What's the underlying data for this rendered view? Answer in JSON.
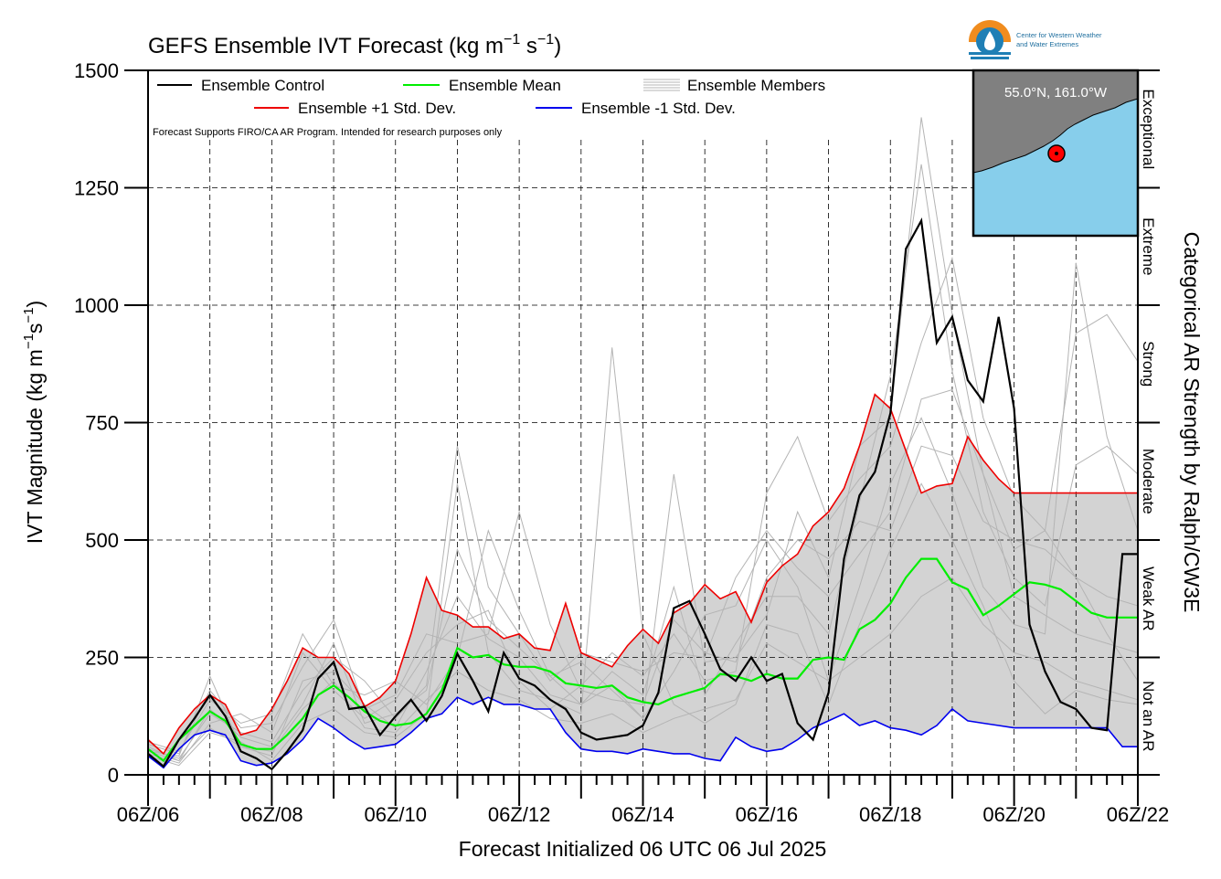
{
  "chart_data": {
    "type": "line",
    "title": "GEFS Ensemble IVT Forecast (kg m",
    "title_sup1": "−1",
    "title_mid": " s",
    "title_sup2": "−1",
    "title_end": ")",
    "xlabel": "Forecast Initialized 06 UTC 06 Jul 2025",
    "ylabel_main": "IVT Magnitude (kg m",
    "ylabel_sup1": "−1",
    "ylabel_mid": "s",
    "ylabel_sup2": "−1",
    "ylabel_end": ")",
    "right_label": "Categorical AR Strength by Ralph/CW3E",
    "x_tick_labels": [
      "06Z/06",
      "06Z/08",
      "06Z/10",
      "06Z/12",
      "06Z/14",
      "06Z/16",
      "06Z/18",
      "06Z/20",
      "06Z/22"
    ],
    "x_range_days": [
      0,
      16
    ],
    "ylim": [
      0,
      1500
    ],
    "y_ticks": [
      0,
      250,
      500,
      750,
      1000,
      1250,
      1500
    ],
    "grid": true,
    "categories": [
      "Not an AR",
      "Weak AR",
      "Moderate",
      "Strong",
      "Extreme",
      "Exceptional"
    ],
    "category_bounds": [
      0,
      250,
      500,
      750,
      1000,
      1250,
      1500
    ],
    "legend": {
      "control": "Ensemble Control",
      "mean": "Ensemble Mean",
      "members": "Ensemble Members",
      "plus_sd": "Ensemble +1 Std. Dev.",
      "minus_sd": "Ensemble -1 Std. Dev."
    },
    "disclaimer": "Forecast Supports FIRO/CA AR Program. Intended for research purposes only",
    "inset_location": "55.0°N, 161.0°W",
    "logo_text": [
      "Center for Western Weather",
      "and Water Extremes"
    ],
    "colors": {
      "control": "#000000",
      "mean": "#00ee00",
      "plus_sd": "#ee0000",
      "minus_sd": "#0000ee",
      "members": "#b4b4b4",
      "band": "#d3d3d3",
      "ocean": "#87ceeb",
      "land": "#808080",
      "marker": "#ff0000"
    },
    "series": [
      {
        "name": "Ensemble Control",
        "x": [
          0,
          0.25,
          0.5,
          0.75,
          1,
          1.25,
          1.5,
          1.75,
          2,
          2.25,
          2.5,
          2.75,
          3,
          3.25,
          3.5,
          3.75,
          4,
          4.25,
          4.5,
          4.75,
          5,
          5.25,
          5.5,
          5.75,
          6,
          6.25,
          6.5,
          6.75,
          7,
          7.25,
          7.5,
          7.75,
          8,
          8.25,
          8.5,
          8.75,
          9,
          9.25,
          9.5,
          9.75,
          10,
          10.25,
          10.5,
          10.75,
          11,
          11.25,
          11.5,
          11.75,
          12,
          12.25,
          12.5,
          12.75,
          13,
          13.25,
          13.5,
          13.75,
          14,
          14.25,
          14.5,
          14.75,
          15,
          15.25,
          15.5,
          15.75,
          16
        ],
        "values": [
          45,
          18,
          75,
          120,
          170,
          125,
          50,
          35,
          12,
          50,
          95,
          205,
          240,
          140,
          145,
          85,
          125,
          160,
          115,
          168,
          258,
          200,
          135,
          260,
          205,
          190,
          160,
          140,
          90,
          75,
          80,
          85,
          105,
          175,
          355,
          370,
          300,
          225,
          200,
          250,
          200,
          215,
          110,
          75,
          175,
          460,
          595,
          645,
          770,
          1120,
          1180,
          920,
          975,
          840,
          795,
          975,
          780,
          320,
          220,
          155,
          140,
          100,
          95,
          470,
          470
        ]
      },
      {
        "name": "Ensemble Mean",
        "x": [
          0,
          0.25,
          0.5,
          0.75,
          1,
          1.25,
          1.5,
          1.75,
          2,
          2.25,
          2.5,
          2.75,
          3,
          3.25,
          3.5,
          3.75,
          4,
          4.25,
          4.5,
          4.75,
          5,
          5.25,
          5.5,
          5.75,
          6,
          6.25,
          6.5,
          6.75,
          7,
          7.25,
          7.5,
          7.75,
          8,
          8.25,
          8.5,
          8.75,
          9,
          9.25,
          9.5,
          9.75,
          10,
          10.25,
          10.5,
          10.75,
          11,
          11.25,
          11.5,
          11.75,
          12,
          12.25,
          12.5,
          12.75,
          13,
          13.25,
          13.5,
          13.75,
          14,
          14.25,
          14.5,
          14.75,
          15,
          15.25,
          15.5,
          15.75,
          16
        ],
        "values": [
          55,
          30,
          75,
          105,
          135,
          115,
          65,
          55,
          55,
          85,
          120,
          170,
          190,
          165,
          135,
          115,
          105,
          110,
          130,
          180,
          270,
          250,
          255,
          235,
          230,
          230,
          220,
          195,
          190,
          185,
          190,
          165,
          155,
          150,
          165,
          175,
          185,
          215,
          210,
          200,
          215,
          205,
          205,
          245,
          250,
          245,
          310,
          330,
          365,
          420,
          460,
          460,
          410,
          395,
          340,
          360,
          385,
          410,
          405,
          395,
          370,
          345,
          335,
          335,
          335
        ]
      },
      {
        "name": "Ensemble +1 Std. Dev.",
        "x": [
          0,
          0.25,
          0.5,
          0.75,
          1,
          1.25,
          1.5,
          1.75,
          2,
          2.25,
          2.5,
          2.75,
          3,
          3.25,
          3.5,
          3.75,
          4,
          4.25,
          4.5,
          4.75,
          5,
          5.25,
          5.5,
          5.75,
          6,
          6.25,
          6.5,
          6.75,
          7,
          7.25,
          7.5,
          7.75,
          8,
          8.25,
          8.5,
          8.75,
          9,
          9.25,
          9.5,
          9.75,
          10,
          10.25,
          10.5,
          10.75,
          11,
          11.25,
          11.5,
          11.75,
          12,
          12.25,
          12.5,
          12.75,
          13,
          13.25,
          13.5,
          13.75,
          14,
          14.25,
          14.5,
          14.75,
          15,
          15.25,
          15.5,
          15.75,
          16
        ],
        "values": [
          75,
          45,
          100,
          140,
          170,
          150,
          85,
          95,
          140,
          200,
          270,
          250,
          250,
          215,
          145,
          165,
          200,
          300,
          420,
          350,
          340,
          315,
          315,
          290,
          300,
          270,
          265,
          365,
          260,
          245,
          230,
          275,
          310,
          280,
          345,
          365,
          405,
          375,
          390,
          325,
          410,
          445,
          470,
          530,
          560,
          610,
          700,
          810,
          780,
          690,
          600,
          615,
          620,
          720,
          670,
          630,
          600,
          600,
          600,
          600,
          600,
          600,
          600,
          600,
          600
        ]
      },
      {
        "name": "Ensemble -1 Std. Dev.",
        "x": [
          0,
          0.25,
          0.5,
          0.75,
          1,
          1.25,
          1.5,
          1.75,
          2,
          2.25,
          2.5,
          2.75,
          3,
          3.25,
          3.5,
          3.75,
          4,
          4.25,
          4.5,
          4.75,
          5,
          5.25,
          5.5,
          5.75,
          6,
          6.25,
          6.5,
          6.75,
          7,
          7.25,
          7.5,
          7.75,
          8,
          8.25,
          8.5,
          8.75,
          9,
          9.25,
          9.5,
          9.75,
          10,
          10.25,
          10.5,
          10.75,
          11,
          11.25,
          11.5,
          11.75,
          12,
          12.25,
          12.5,
          12.75,
          13,
          13.25,
          13.5,
          13.75,
          14,
          14.25,
          14.5,
          14.75,
          15,
          15.25,
          15.5,
          15.75,
          16
        ],
        "values": [
          40,
          15,
          55,
          85,
          95,
          85,
          30,
          20,
          25,
          45,
          75,
          120,
          100,
          75,
          55,
          60,
          65,
          90,
          120,
          130,
          165,
          150,
          165,
          150,
          150,
          140,
          140,
          90,
          55,
          50,
          50,
          45,
          55,
          50,
          45,
          45,
          35,
          30,
          80,
          60,
          50,
          55,
          75,
          100,
          115,
          130,
          105,
          115,
          100,
          95,
          85,
          105,
          140,
          115,
          110,
          105,
          100,
          100,
          100,
          100,
          100,
          100,
          100,
          60,
          60
        ]
      }
    ],
    "member_series": [
      {
        "x": [
          0,
          0.5,
          1,
          1.5,
          2,
          2.5,
          3,
          3.5,
          4,
          4.5,
          5,
          5.5,
          6,
          6.5,
          7,
          7.5,
          8,
          8.5,
          9,
          9.5,
          10,
          10.5,
          11,
          11.5,
          12,
          12.5,
          13,
          13.5,
          14,
          14.5,
          15,
          15.5,
          16
        ],
        "values": [
          60,
          30,
          140,
          80,
          60,
          150,
          280,
          110,
          130,
          180,
          480,
          330,
          270,
          210,
          150,
          190,
          120,
          640,
          240,
          250,
          340,
          560,
          420,
          700,
          760,
          1400,
          980,
          640,
          480,
          520,
          420,
          300,
          200
        ]
      },
      {
        "x": [
          0,
          0.5,
          1,
          1.5,
          2,
          2.5,
          3,
          3.5,
          4,
          4.5,
          5,
          5.5,
          6,
          6.5,
          7,
          7.5,
          8,
          8.5,
          9,
          9.5,
          10,
          10.5,
          11,
          11.5,
          12,
          12.5,
          13,
          13.5,
          14,
          14.5,
          15,
          15.5,
          16
        ],
        "values": [
          50,
          40,
          210,
          60,
          40,
          200,
          220,
          150,
          100,
          220,
          380,
          290,
          250,
          170,
          150,
          220,
          170,
          400,
          170,
          280,
          380,
          380,
          300,
          580,
          850,
          1300,
          860,
          560,
          420,
          360,
          660,
          700,
          640
        ]
      },
      {
        "x": [
          0,
          0.5,
          1,
          1.5,
          2,
          2.5,
          3,
          3.5,
          4,
          4.5,
          5,
          5.5,
          6,
          6.5,
          7,
          7.5,
          8,
          8.5,
          9,
          9.5,
          10,
          10.5,
          11,
          11.5,
          12,
          12.5,
          13,
          13.5,
          14,
          14.5,
          15,
          15.5,
          16
        ],
        "values": [
          45,
          25,
          110,
          130,
          90,
          260,
          180,
          120,
          160,
          260,
          320,
          350,
          200,
          140,
          190,
          260,
          210,
          300,
          200,
          220,
          600,
          720,
          540,
          630,
          700,
          920,
          1100,
          760,
          590,
          520,
          940,
          980,
          880
        ]
      },
      {
        "x": [
          0,
          0.5,
          1,
          1.5,
          2,
          2.5,
          3,
          3.5,
          4,
          4.5,
          5,
          5.5,
          6,
          6.5,
          7,
          7.5,
          8,
          8.5,
          9,
          9.5,
          10,
          10.5,
          11,
          11.5,
          12,
          12.5,
          13,
          13.5,
          14,
          14.5,
          15,
          15.5,
          16
        ],
        "values": [
          70,
          50,
          160,
          110,
          130,
          300,
          190,
          170,
          200,
          150,
          250,
          520,
          350,
          210,
          240,
          180,
          120,
          220,
          340,
          360,
          500,
          400,
          200,
          400,
          620,
          760,
          600,
          400,
          320,
          300,
          1090,
          720,
          520
        ]
      },
      {
        "x": [
          0,
          0.5,
          1,
          1.5,
          2,
          2.5,
          3,
          3.5,
          4,
          4.5,
          5,
          5.5,
          6,
          6.5,
          7,
          7.5,
          8,
          8.5,
          9,
          9.5,
          10,
          10.5,
          11,
          11.5,
          12,
          12.5,
          13,
          13.5,
          14,
          14.5,
          15,
          15.5,
          16
        ],
        "values": [
          40,
          20,
          90,
          70,
          30,
          110,
          140,
          90,
          80,
          130,
          620,
          260,
          180,
          160,
          130,
          910,
          300,
          150,
          110,
          150,
          320,
          300,
          150,
          320,
          480,
          620,
          500,
          360,
          200,
          130,
          180,
          160,
          150
        ]
      },
      {
        "x": [
          0,
          0.5,
          1,
          1.5,
          2,
          2.5,
          3,
          3.5,
          4,
          4.5,
          5,
          5.5,
          6,
          6.5,
          7,
          7.5,
          8,
          8.5,
          9,
          9.5,
          10,
          10.5,
          11,
          11.5,
          12,
          12.5,
          13,
          13.5,
          14,
          14.5,
          15,
          15.5,
          16
        ],
        "values": [
          55,
          35,
          130,
          90,
          70,
          180,
          250,
          200,
          120,
          190,
          700,
          400,
          300,
          200,
          260,
          240,
          220,
          260,
          250,
          420,
          520,
          440,
          380,
          470,
          560,
          800,
          820,
          640,
          380,
          340,
          300,
          280,
          260
        ]
      },
      {
        "x": [
          0,
          0.5,
          1,
          1.5,
          2,
          2.5,
          3,
          3.5,
          4,
          4.5,
          5,
          5.5,
          6,
          6.5,
          7,
          7.5,
          8,
          8.5,
          9,
          9.5,
          10,
          10.5,
          11,
          11.5,
          12,
          12.5,
          13,
          13.5,
          14,
          14.5,
          15,
          15.5,
          16
        ],
        "values": [
          65,
          45,
          180,
          100,
          110,
          230,
          330,
          140,
          170,
          300,
          280,
          300,
          560,
          320,
          180,
          160,
          150,
          330,
          260,
          240,
          420,
          500,
          460,
          540,
          520,
          700,
          680,
          540,
          500,
          480,
          420,
          380,
          360
        ]
      },
      {
        "x": [
          0,
          0.5,
          1,
          1.5,
          2,
          2.5,
          3,
          3.5,
          4,
          4.5,
          5,
          5.5,
          6,
          6.5,
          7,
          7.5,
          8,
          8.5,
          9,
          9.5,
          10,
          10.5,
          11,
          11.5,
          12,
          12.5,
          13,
          13.5,
          14,
          14.5,
          15,
          15.5,
          16
        ],
        "values": [
          50,
          30,
          100,
          60,
          50,
          140,
          200,
          100,
          90,
          160,
          220,
          180,
          160,
          120,
          110,
          130,
          90,
          120,
          140,
          160,
          280,
          240,
          200,
          250,
          300,
          380,
          420,
          320,
          260,
          240,
          200,
          180,
          160
        ]
      }
    ]
  }
}
